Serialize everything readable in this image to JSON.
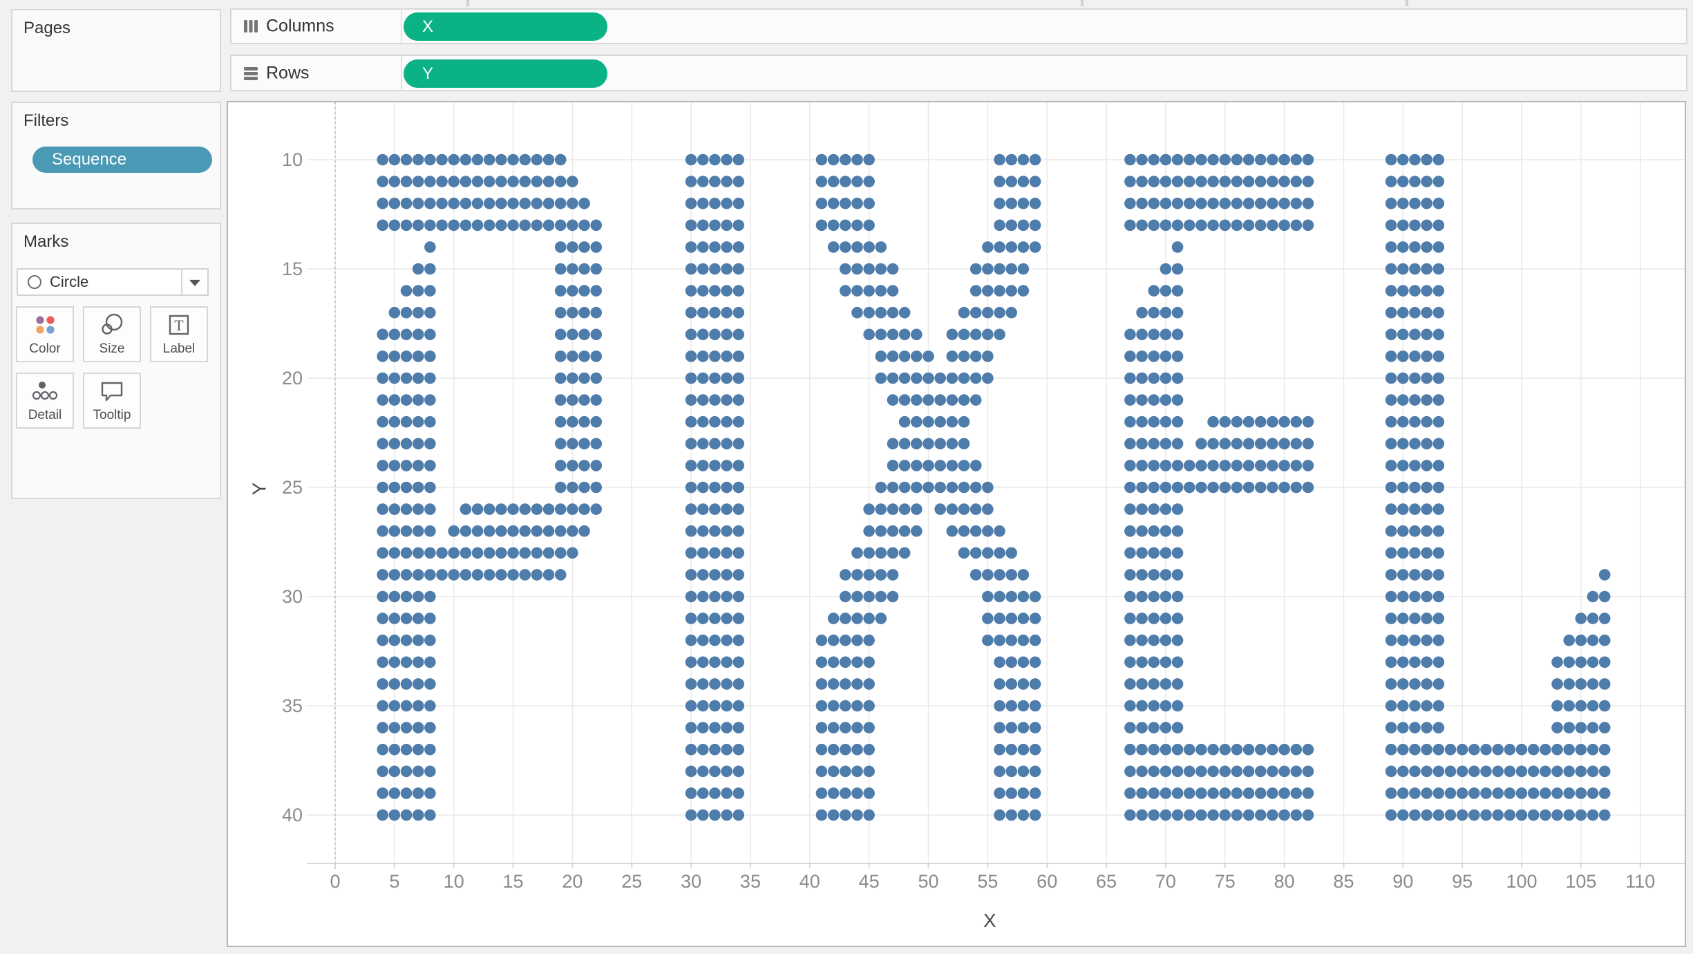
{
  "sidebar": {
    "pages": {
      "title": "Pages"
    },
    "filters": {
      "title": "Filters",
      "pill_label": "Sequence",
      "pill_color": "#4a99b5"
    },
    "marks": {
      "title": "Marks",
      "mark_type": "Circle",
      "buttons_row1": [
        {
          "label": "Color"
        },
        {
          "label": "Size"
        },
        {
          "label": "Label"
        }
      ],
      "buttons_row2": [
        {
          "label": "Detail"
        },
        {
          "label": "Tooltip"
        }
      ],
      "color_icon_dots": [
        "#9c6f9f",
        "#f05c5c",
        "#f2a362",
        "#7ba0ce"
      ]
    }
  },
  "shelves": {
    "columns": {
      "label": "Columns",
      "pill_label": "X",
      "pill_color": "#0ab286"
    },
    "rows": {
      "label": "Rows",
      "pill_label": "Y",
      "pill_color": "#0ab286"
    }
  },
  "chart_data": {
    "type": "scatter",
    "word_depicted": "PIXEL",
    "xlabel": "X",
    "ylabel": "Y",
    "x_ticks": [
      0,
      5,
      10,
      15,
      20,
      25,
      30,
      35,
      40,
      45,
      50,
      55,
      60,
      65,
      70,
      75,
      80,
      85,
      90,
      95,
      100,
      105,
      110
    ],
    "y_ticks": [
      10,
      15,
      20,
      25,
      30,
      35,
      40
    ],
    "xlim": [
      -2.4,
      114
    ],
    "ylim": [
      7.4,
      42.2
    ],
    "y_axis_reversed": true,
    "grid": true,
    "zero_line_dashed": true,
    "mark_shape": "circle",
    "mark_color": "#4e7cab",
    "rows": [
      {
        "y": 10,
        "runs": [
          [
            4,
            19
          ],
          [
            30,
            34
          ],
          [
            41,
            45
          ],
          [
            56,
            59
          ],
          [
            67,
            82
          ],
          [
            89,
            93
          ]
        ]
      },
      {
        "y": 11,
        "runs": [
          [
            4,
            20
          ],
          [
            30,
            34
          ],
          [
            41,
            45
          ],
          [
            56,
            59
          ],
          [
            67,
            82
          ],
          [
            89,
            93
          ]
        ]
      },
      {
        "y": 12,
        "runs": [
          [
            4,
            21
          ],
          [
            30,
            34
          ],
          [
            41,
            45
          ],
          [
            56,
            59
          ],
          [
            67,
            82
          ],
          [
            89,
            93
          ]
        ]
      },
      {
        "y": 13,
        "runs": [
          [
            4,
            22
          ],
          [
            30,
            34
          ],
          [
            41,
            45
          ],
          [
            56,
            59
          ],
          [
            67,
            82
          ],
          [
            89,
            93
          ]
        ]
      },
      {
        "y": 14,
        "runs": [
          [
            8,
            8
          ],
          [
            19,
            22
          ],
          [
            30,
            34
          ],
          [
            42,
            46
          ],
          [
            55,
            59
          ],
          [
            71,
            71
          ],
          [
            89,
            93
          ]
        ]
      },
      {
        "y": 15,
        "runs": [
          [
            7,
            8
          ],
          [
            19,
            22
          ],
          [
            30,
            34
          ],
          [
            43,
            47
          ],
          [
            54,
            58
          ],
          [
            70,
            71
          ],
          [
            89,
            93
          ]
        ]
      },
      {
        "y": 16,
        "runs": [
          [
            6,
            8
          ],
          [
            19,
            22
          ],
          [
            30,
            34
          ],
          [
            43,
            47
          ],
          [
            54,
            58
          ],
          [
            69,
            71
          ],
          [
            89,
            93
          ]
        ]
      },
      {
        "y": 17,
        "runs": [
          [
            5,
            8
          ],
          [
            19,
            22
          ],
          [
            30,
            34
          ],
          [
            44,
            48
          ],
          [
            53,
            57
          ],
          [
            68,
            71
          ],
          [
            89,
            93
          ]
        ]
      },
      {
        "y": 18,
        "runs": [
          [
            4,
            8
          ],
          [
            19,
            22
          ],
          [
            30,
            34
          ],
          [
            45,
            49
          ],
          [
            52,
            56
          ],
          [
            67,
            71
          ],
          [
            89,
            93
          ]
        ]
      },
      {
        "y": 19,
        "runs": [
          [
            4,
            8
          ],
          [
            19,
            22
          ],
          [
            30,
            34
          ],
          [
            46,
            50
          ],
          [
            52,
            55
          ],
          [
            67,
            71
          ],
          [
            89,
            93
          ]
        ]
      },
      {
        "y": 20,
        "runs": [
          [
            4,
            8
          ],
          [
            19,
            22
          ],
          [
            30,
            34
          ],
          [
            46,
            55
          ],
          [
            67,
            71
          ],
          [
            89,
            93
          ]
        ]
      },
      {
        "y": 21,
        "runs": [
          [
            4,
            8
          ],
          [
            19,
            22
          ],
          [
            30,
            34
          ],
          [
            47,
            54
          ],
          [
            67,
            71
          ],
          [
            89,
            93
          ]
        ]
      },
      {
        "y": 22,
        "runs": [
          [
            4,
            8
          ],
          [
            19,
            22
          ],
          [
            30,
            34
          ],
          [
            48,
            53
          ],
          [
            67,
            71
          ],
          [
            74,
            82
          ],
          [
            89,
            93
          ]
        ]
      },
      {
        "y": 23,
        "runs": [
          [
            4,
            8
          ],
          [
            19,
            22
          ],
          [
            30,
            34
          ],
          [
            47,
            53
          ],
          [
            67,
            71
          ],
          [
            73,
            82
          ],
          [
            89,
            93
          ]
        ]
      },
      {
        "y": 24,
        "runs": [
          [
            4,
            8
          ],
          [
            19,
            22
          ],
          [
            30,
            34
          ],
          [
            47,
            54
          ],
          [
            67,
            82
          ],
          [
            89,
            93
          ]
        ]
      },
      {
        "y": 25,
        "runs": [
          [
            4,
            8
          ],
          [
            19,
            22
          ],
          [
            30,
            34
          ],
          [
            46,
            55
          ],
          [
            67,
            82
          ],
          [
            89,
            93
          ]
        ]
      },
      {
        "y": 26,
        "runs": [
          [
            4,
            8
          ],
          [
            11,
            22
          ],
          [
            30,
            34
          ],
          [
            45,
            49
          ],
          [
            51,
            55
          ],
          [
            67,
            71
          ],
          [
            89,
            93
          ]
        ]
      },
      {
        "y": 27,
        "runs": [
          [
            4,
            8
          ],
          [
            10,
            21
          ],
          [
            30,
            34
          ],
          [
            45,
            49
          ],
          [
            52,
            56
          ],
          [
            67,
            71
          ],
          [
            89,
            93
          ]
        ]
      },
      {
        "y": 28,
        "runs": [
          [
            4,
            20
          ],
          [
            30,
            34
          ],
          [
            44,
            48
          ],
          [
            53,
            57
          ],
          [
            67,
            71
          ],
          [
            89,
            93
          ]
        ]
      },
      {
        "y": 29,
        "runs": [
          [
            4,
            19
          ],
          [
            30,
            34
          ],
          [
            43,
            47
          ],
          [
            54,
            58
          ],
          [
            67,
            71
          ],
          [
            89,
            93
          ],
          [
            107,
            107
          ]
        ]
      },
      {
        "y": 30,
        "runs": [
          [
            4,
            8
          ],
          [
            30,
            34
          ],
          [
            43,
            47
          ],
          [
            55,
            59
          ],
          [
            67,
            71
          ],
          [
            89,
            93
          ],
          [
            106,
            107
          ]
        ]
      },
      {
        "y": 31,
        "runs": [
          [
            4,
            8
          ],
          [
            30,
            34
          ],
          [
            42,
            46
          ],
          [
            55,
            59
          ],
          [
            67,
            71
          ],
          [
            89,
            93
          ],
          [
            105,
            107
          ]
        ]
      },
      {
        "y": 32,
        "runs": [
          [
            4,
            8
          ],
          [
            30,
            34
          ],
          [
            41,
            45
          ],
          [
            55,
            59
          ],
          [
            67,
            71
          ],
          [
            89,
            93
          ],
          [
            104,
            107
          ]
        ]
      },
      {
        "y": 33,
        "runs": [
          [
            4,
            8
          ],
          [
            30,
            34
          ],
          [
            41,
            45
          ],
          [
            56,
            59
          ],
          [
            67,
            71
          ],
          [
            89,
            93
          ],
          [
            103,
            107
          ]
        ]
      },
      {
        "y": 34,
        "runs": [
          [
            4,
            8
          ],
          [
            30,
            34
          ],
          [
            41,
            45
          ],
          [
            56,
            59
          ],
          [
            67,
            71
          ],
          [
            89,
            93
          ],
          [
            103,
            107
          ]
        ]
      },
      {
        "y": 35,
        "runs": [
          [
            4,
            8
          ],
          [
            30,
            34
          ],
          [
            41,
            45
          ],
          [
            56,
            59
          ],
          [
            67,
            71
          ],
          [
            89,
            93
          ],
          [
            103,
            107
          ]
        ]
      },
      {
        "y": 36,
        "runs": [
          [
            4,
            8
          ],
          [
            30,
            34
          ],
          [
            41,
            45
          ],
          [
            56,
            59
          ],
          [
            67,
            71
          ],
          [
            89,
            93
          ],
          [
            103,
            107
          ]
        ]
      },
      {
        "y": 37,
        "runs": [
          [
            4,
            8
          ],
          [
            30,
            34
          ],
          [
            41,
            45
          ],
          [
            56,
            59
          ],
          [
            67,
            82
          ],
          [
            89,
            107
          ]
        ]
      },
      {
        "y": 38,
        "runs": [
          [
            4,
            8
          ],
          [
            30,
            34
          ],
          [
            41,
            45
          ],
          [
            56,
            59
          ],
          [
            67,
            82
          ],
          [
            89,
            107
          ]
        ]
      },
      {
        "y": 39,
        "runs": [
          [
            4,
            8
          ],
          [
            30,
            34
          ],
          [
            41,
            45
          ],
          [
            56,
            59
          ],
          [
            67,
            82
          ],
          [
            89,
            107
          ]
        ]
      },
      {
        "y": 40,
        "runs": [
          [
            4,
            8
          ],
          [
            30,
            34
          ],
          [
            41,
            45
          ],
          [
            56,
            59
          ],
          [
            67,
            82
          ],
          [
            89,
            107
          ]
        ]
      }
    ]
  }
}
